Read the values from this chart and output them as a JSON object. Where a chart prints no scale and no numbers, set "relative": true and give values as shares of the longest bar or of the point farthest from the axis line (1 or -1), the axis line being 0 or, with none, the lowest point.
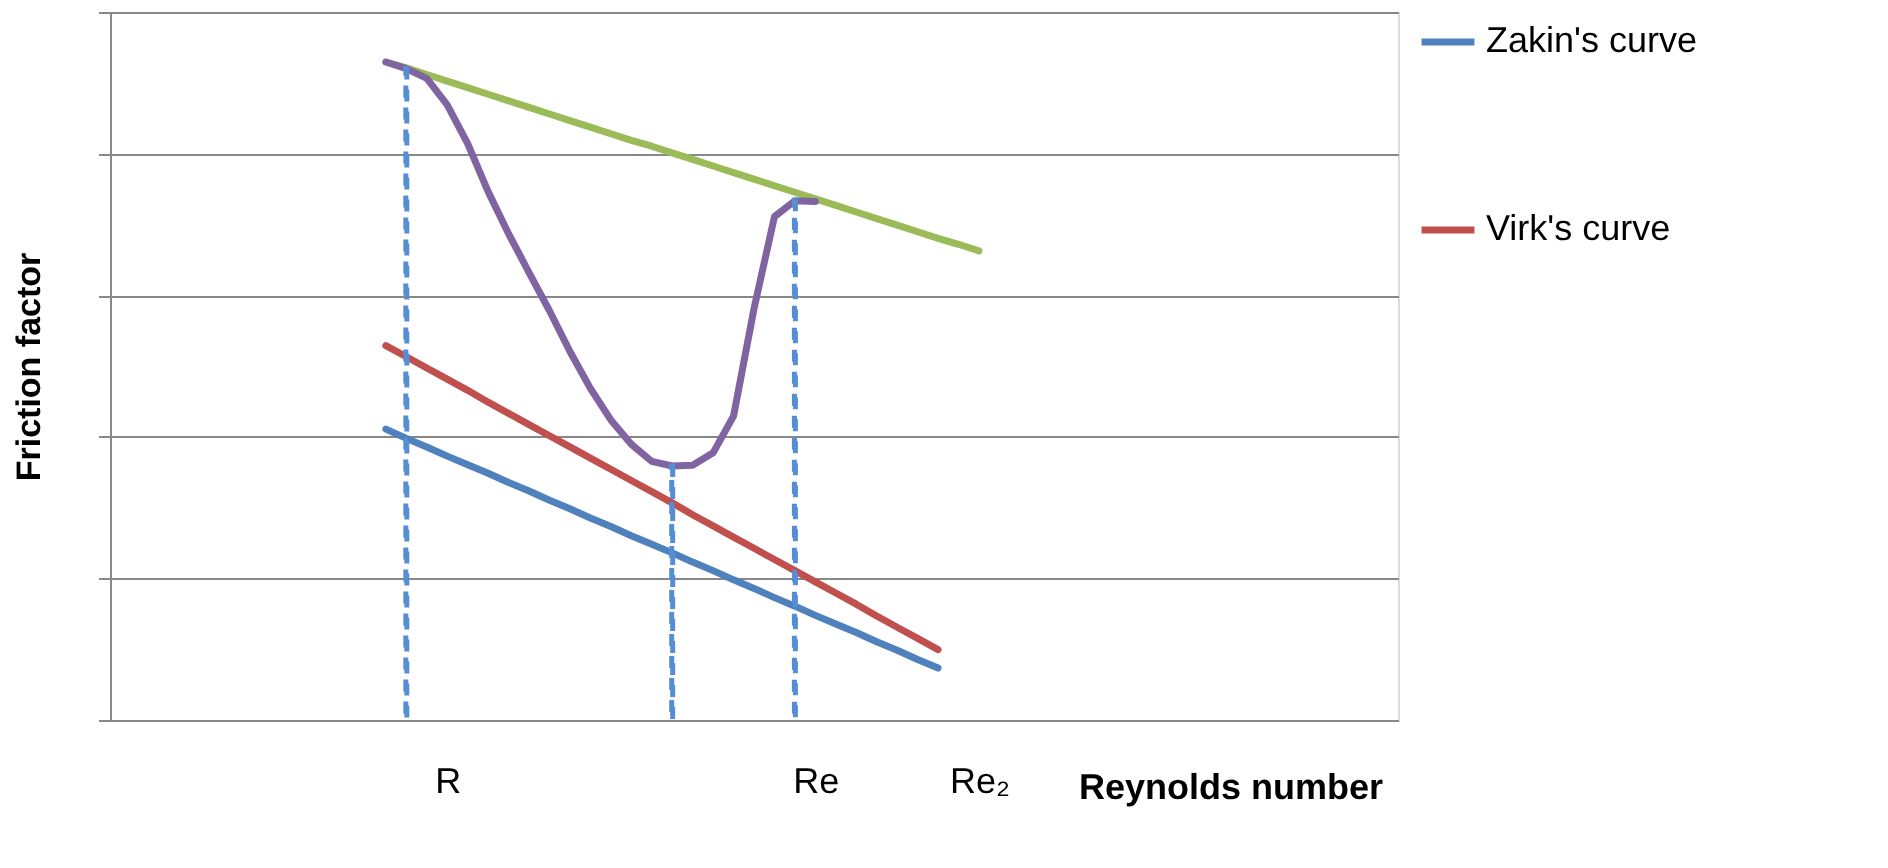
{
  "chart_data": {
    "type": "line",
    "relative": true,
    "xlabel": "Reynolds number",
    "ylabel": "Friction factor",
    "categories": [
      null,
      null,
      null,
      null,
      null,
      null,
      null,
      null,
      null,
      null,
      null,
      null,
      null,
      null,
      "R",
      null,
      null,
      null,
      null,
      null,
      null,
      null,
      null,
      null,
      null,
      null,
      null,
      null,
      null,
      null,
      null,
      null,
      "Re",
      null,
      null,
      null,
      null,
      null,
      null,
      null,
      "Re₂",
      null,
      null,
      null,
      null,
      null,
      null,
      null,
      null,
      null,
      null,
      null,
      null,
      null,
      null,
      null,
      null,
      null,
      null,
      null,
      null
    ],
    "grid": "y",
    "legend": "right",
    "series": [
      {
        "name": "Zakin's curve",
        "color": "#4f81bd",
        "values": [
          null,
          null,
          null,
          null,
          null,
          null,
          null,
          null,
          null,
          null,
          null,
          0.442,
          0.428,
          0.415,
          0.401,
          0.388,
          0.375,
          0.361,
          0.348,
          0.334,
          0.321,
          0.307,
          0.294,
          0.28,
          0.267,
          0.254,
          0.24,
          0.227,
          0.213,
          0.2,
          0.186,
          0.173,
          0.159,
          0.146,
          0.133,
          0.119,
          0.106,
          0.092,
          0.079,
          null,
          null,
          null,
          null,
          null,
          null,
          null,
          null,
          null,
          null,
          null,
          null,
          null,
          null,
          null,
          null,
          null,
          null,
          null,
          null,
          null,
          null
        ]
      },
      {
        "name": "Virk's curve",
        "color": "#c0504d",
        "values": [
          null,
          null,
          null,
          null,
          null,
          null,
          null,
          null,
          null,
          null,
          null,
          0.569,
          0.552,
          0.535,
          0.518,
          0.501,
          0.483,
          0.466,
          0.449,
          0.432,
          0.415,
          0.398,
          0.381,
          0.364,
          0.347,
          0.33,
          0.312,
          0.295,
          0.278,
          0.261,
          0.244,
          0.227,
          0.21,
          0.193,
          0.176,
          0.158,
          0.141,
          0.124,
          0.107,
          null,
          null,
          null,
          null,
          null,
          null,
          null,
          null,
          null,
          null,
          null,
          null,
          null,
          null,
          null,
          null,
          null,
          null,
          null,
          null,
          null,
          null
        ]
      },
      {
        "color": "#9bbb59",
        "values": [
          null,
          null,
          null,
          null,
          null,
          null,
          null,
          null,
          null,
          null,
          null,
          1.0,
          0.991,
          0.981,
          0.971,
          0.961,
          0.951,
          0.941,
          0.931,
          0.921,
          0.911,
          0.901,
          0.891,
          0.881,
          0.872,
          0.862,
          0.852,
          0.842,
          0.832,
          0.822,
          0.812,
          0.802,
          0.792,
          0.782,
          0.772,
          0.762,
          0.752,
          0.742,
          0.732,
          0.723,
          0.713,
          null,
          null,
          null,
          null,
          null,
          null,
          null,
          null,
          null,
          null,
          null,
          null,
          null,
          null,
          null,
          null,
          null,
          null,
          null,
          null
        ]
      },
      {
        "color": "#8064a2",
        "values": [
          null,
          null,
          null,
          null,
          null,
          null,
          null,
          null,
          null,
          null,
          null,
          1.0,
          0.99,
          0.975,
          0.935,
          0.876,
          0.803,
          0.739,
          0.68,
          0.622,
          0.56,
          0.504,
          0.456,
          0.419,
          0.393,
          0.386,
          0.387,
          0.406,
          0.462,
          0.625,
          0.765,
          0.789,
          0.788,
          null,
          null,
          null,
          null,
          null,
          null,
          null,
          null,
          null,
          null,
          null,
          null,
          null,
          null,
          null,
          null,
          null,
          null,
          null,
          null,
          null,
          null,
          null,
          null,
          null,
          null,
          null,
          null
        ]
      },
      {
        "type": "bar",
        "color": "#558ed5",
        "line_style": "dashed",
        "values": [
          null,
          null,
          null,
          null,
          null,
          null,
          null,
          null,
          null,
          null,
          null,
          null,
          0.99,
          null,
          null,
          null,
          null,
          null,
          null,
          null,
          null,
          null,
          null,
          null,
          null,
          0.386,
          null,
          null,
          null,
          null,
          null,
          0.79,
          null,
          null,
          null,
          null,
          null,
          null,
          null,
          null,
          null,
          null,
          null,
          null,
          null,
          null,
          null,
          null,
          null,
          null,
          null,
          null,
          null,
          null,
          null,
          null,
          null,
          null,
          null,
          null,
          null
        ]
      }
    ]
  }
}
